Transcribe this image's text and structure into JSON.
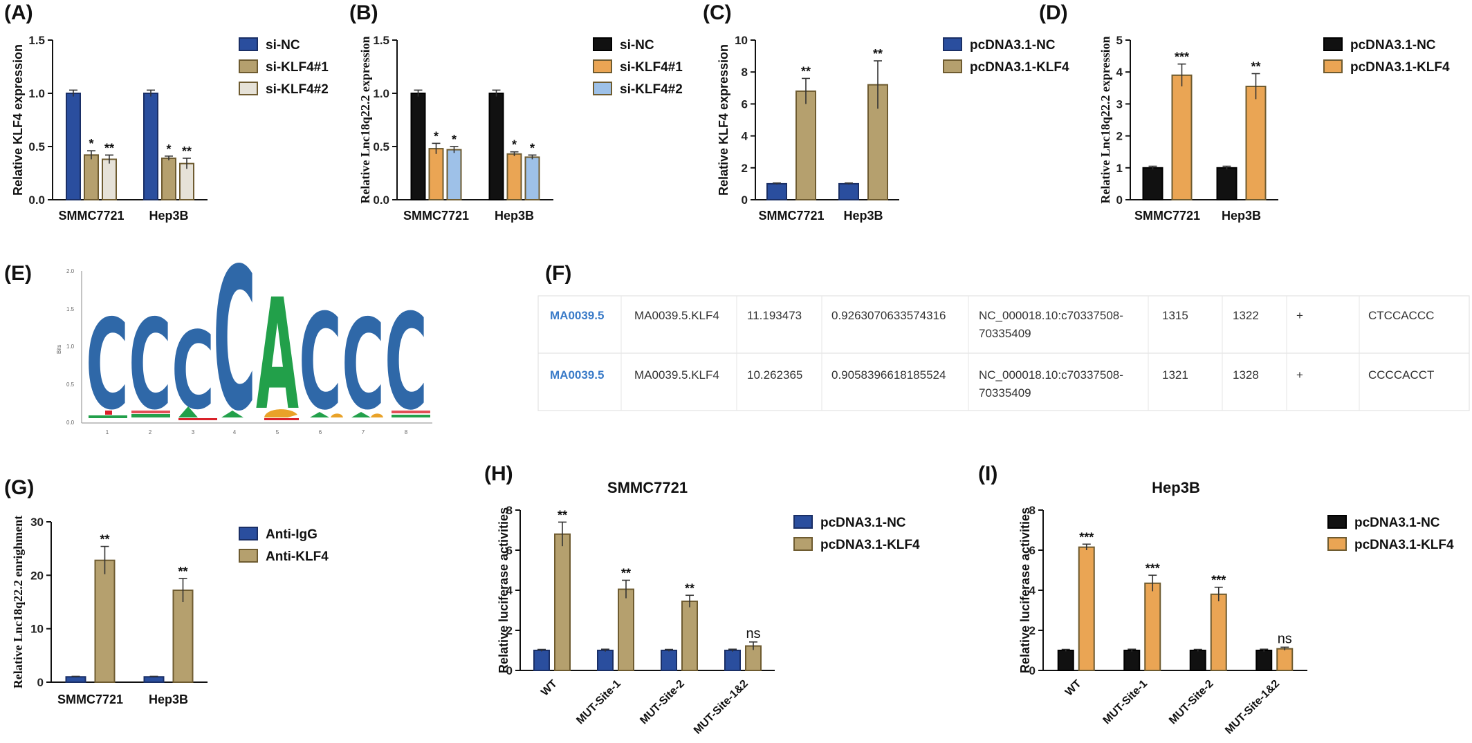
{
  "panels": {
    "A": "(A)",
    "B": "(B)",
    "C": "(C)",
    "D": "(D)",
    "E": "(E)",
    "F": "(F)",
    "G": "(G)",
    "H": "(H)",
    "I": "(I)"
  },
  "colors": {
    "blue": "#2a4e9e",
    "tan": "#b5a06e",
    "light_gray": "#e6e2d8",
    "black": "#111111",
    "orange": "#eaa554",
    "light_blue": "#9ec1e8",
    "motif_blue": "#2f68a8",
    "motif_green": "#22a04a",
    "motif_orange": "#e9a228",
    "motif_red": "#d9222a"
  },
  "motif": {
    "y_axis_label": "Bits",
    "y_ticks": [
      "0.0",
      "0.5",
      "1.0",
      "1.5",
      "2.0"
    ],
    "positions": [
      "1",
      "2",
      "3",
      "4",
      "5",
      "6",
      "7",
      "8"
    ],
    "letters": [
      "C",
      "C",
      "C",
      "C",
      "A",
      "C",
      "C",
      "C"
    ]
  },
  "table": {
    "rows": [
      {
        "id": "MA0039.5",
        "name": "MA0039.5.KLF4",
        "score": "11.193473",
        "rel_score": "0.9263070633574316",
        "seq_line1": "NC_000018.10:c70337508-",
        "seq_line2": "70335409",
        "start": "1315",
        "end": "1322",
        "strand": "+",
        "site": "CTCCACCC"
      },
      {
        "id": "MA0039.5",
        "name": "MA0039.5.KLF4",
        "score": "10.262365",
        "rel_score": "0.9058396618185524",
        "seq_line1": "NC_000018.10:c70337508-",
        "seq_line2": "70335409",
        "start": "1321",
        "end": "1328",
        "strand": "+",
        "site": "CCCCACCT"
      }
    ]
  },
  "chart_data": [
    {
      "panel": "A",
      "type": "bar",
      "title": "",
      "xlabel": "",
      "ylabel": "Relative KLF4 expression",
      "ylim": [
        0,
        1.5
      ],
      "yticks": [
        "0.0",
        "0.5",
        "1.0",
        "1.5"
      ],
      "categories": [
        "SMMC7721",
        "Hep3B"
      ],
      "series": [
        {
          "name": "si-NC",
          "color": "#2a4e9e",
          "values": [
            1.0,
            1.0
          ],
          "errors": [
            0.03,
            0.03
          ],
          "sig": [
            "",
            ""
          ]
        },
        {
          "name": "si-KLF4#1",
          "color": "#b5a06e",
          "values": [
            0.42,
            0.39
          ],
          "errors": [
            0.04,
            0.02
          ],
          "sig": [
            "*",
            "*"
          ]
        },
        {
          "name": "si-KLF4#2",
          "color": "#e6e2d8",
          "values": [
            0.38,
            0.34
          ],
          "errors": [
            0.04,
            0.05
          ],
          "sig": [
            "**",
            "**"
          ]
        }
      ]
    },
    {
      "panel": "B",
      "type": "bar",
      "title": "",
      "xlabel": "",
      "ylabel": "Relative Lnc18q22.2 expression",
      "ylim": [
        0,
        1.5
      ],
      "yticks": [
        "0.0",
        "0.5",
        "1.0",
        "1.5"
      ],
      "categories": [
        "SMMC7721",
        "Hep3B"
      ],
      "series": [
        {
          "name": "si-NC",
          "color": "#111111",
          "values": [
            1.0,
            1.0
          ],
          "errors": [
            0.03,
            0.03
          ],
          "sig": [
            "",
            ""
          ]
        },
        {
          "name": "si-KLF4#1",
          "color": "#eaa554",
          "values": [
            0.48,
            0.43
          ],
          "errors": [
            0.05,
            0.02
          ],
          "sig": [
            "*",
            "*"
          ]
        },
        {
          "name": "si-KLF4#2",
          "color": "#9ec1e8",
          "values": [
            0.47,
            0.4
          ],
          "errors": [
            0.03,
            0.02
          ],
          "sig": [
            "*",
            "*"
          ]
        }
      ]
    },
    {
      "panel": "C",
      "type": "bar",
      "title": "",
      "xlabel": "",
      "ylabel": "Relative KLF4 expression",
      "ylim": [
        0,
        10
      ],
      "yticks": [
        "0",
        "2",
        "4",
        "6",
        "8",
        "10"
      ],
      "categories": [
        "SMMC7721",
        "Hep3B"
      ],
      "series": [
        {
          "name": "pcDNA3.1-NC",
          "color": "#2a4e9e",
          "values": [
            1.0,
            1.0
          ],
          "errors": [
            0.05,
            0.05
          ],
          "sig": [
            "",
            ""
          ]
        },
        {
          "name": "pcDNA3.1-KLF4",
          "color": "#b5a06e",
          "values": [
            6.8,
            7.2
          ],
          "errors": [
            0.8,
            1.5
          ],
          "sig": [
            "**",
            "**"
          ]
        }
      ]
    },
    {
      "panel": "D",
      "type": "bar",
      "title": "",
      "xlabel": "",
      "ylabel": "Relative Lnc18q22.2 expression",
      "ylim": [
        0,
        5
      ],
      "yticks": [
        "0",
        "1",
        "2",
        "3",
        "4",
        "5"
      ],
      "categories": [
        "SMMC7721",
        "Hep3B"
      ],
      "series": [
        {
          "name": "pcDNA3.1-NC",
          "color": "#111111",
          "values": [
            1.0,
            1.0
          ],
          "errors": [
            0.05,
            0.05
          ],
          "sig": [
            "",
            ""
          ]
        },
        {
          "name": "pcDNA3.1-KLF4",
          "color": "#eaa554",
          "values": [
            3.9,
            3.55
          ],
          "errors": [
            0.35,
            0.4
          ],
          "sig": [
            "***",
            "**"
          ]
        }
      ]
    },
    {
      "panel": "G",
      "type": "bar",
      "title": "",
      "xlabel": "",
      "ylabel": "Relative Lnc18q22.2 enrighment",
      "ylim": [
        0,
        30
      ],
      "yticks": [
        "0",
        "10",
        "20",
        "30"
      ],
      "categories": [
        "SMMC7721",
        "Hep3B"
      ],
      "series": [
        {
          "name": "Anti-IgG",
          "color": "#2a4e9e",
          "values": [
            1.0,
            1.0
          ],
          "errors": [
            0.1,
            0.1
          ],
          "sig": [
            "",
            ""
          ]
        },
        {
          "name": "Anti-KLF4",
          "color": "#b5a06e",
          "values": [
            22.8,
            17.2
          ],
          "errors": [
            2.6,
            2.2
          ],
          "sig": [
            "**",
            "**"
          ]
        }
      ]
    },
    {
      "panel": "H",
      "type": "bar",
      "title": "SMMC7721",
      "xlabel": "",
      "ylabel": "Relative luciferase activities",
      "ylim": [
        0,
        8
      ],
      "yticks": [
        "0",
        "2",
        "4",
        "6",
        "8"
      ],
      "categories": [
        "WT",
        "MUT-Site-1",
        "MUT-Site-2",
        "MUT-Site-1&2"
      ],
      "series": [
        {
          "name": "pcDNA3.1-NC",
          "color": "#2a4e9e",
          "values": [
            1.0,
            1.0,
            1.0,
            1.0
          ],
          "errors": [
            0.05,
            0.06,
            0.05,
            0.06
          ],
          "sig": [
            "",
            "",
            "",
            ""
          ]
        },
        {
          "name": "pcDNA3.1-KLF4",
          "color": "#b5a06e",
          "values": [
            6.8,
            4.05,
            3.45,
            1.22
          ],
          "errors": [
            0.6,
            0.45,
            0.3,
            0.2
          ],
          "sig": [
            "**",
            "**",
            "**",
            "ns"
          ]
        }
      ]
    },
    {
      "panel": "I",
      "type": "bar",
      "title": "Hep3B",
      "xlabel": "",
      "ylabel": "Relative luciferase activities",
      "ylim": [
        0,
        8
      ],
      "yticks": [
        "0",
        "2",
        "4",
        "6",
        "8"
      ],
      "categories": [
        "WT",
        "MUT-Site-1",
        "MUT-Site-2",
        "MUT-Site-1&2"
      ],
      "series": [
        {
          "name": "pcDNA3.1-NC",
          "color": "#111111",
          "values": [
            1.0,
            1.0,
            1.0,
            1.0
          ],
          "errors": [
            0.05,
            0.06,
            0.05,
            0.06
          ],
          "sig": [
            "",
            "",
            "",
            ""
          ]
        },
        {
          "name": "pcDNA3.1-KLF4",
          "color": "#eaa554",
          "values": [
            6.15,
            4.35,
            3.8,
            1.08
          ],
          "errors": [
            0.15,
            0.4,
            0.35,
            0.08
          ],
          "sig": [
            "***",
            "***",
            "***",
            "ns"
          ]
        }
      ]
    }
  ]
}
